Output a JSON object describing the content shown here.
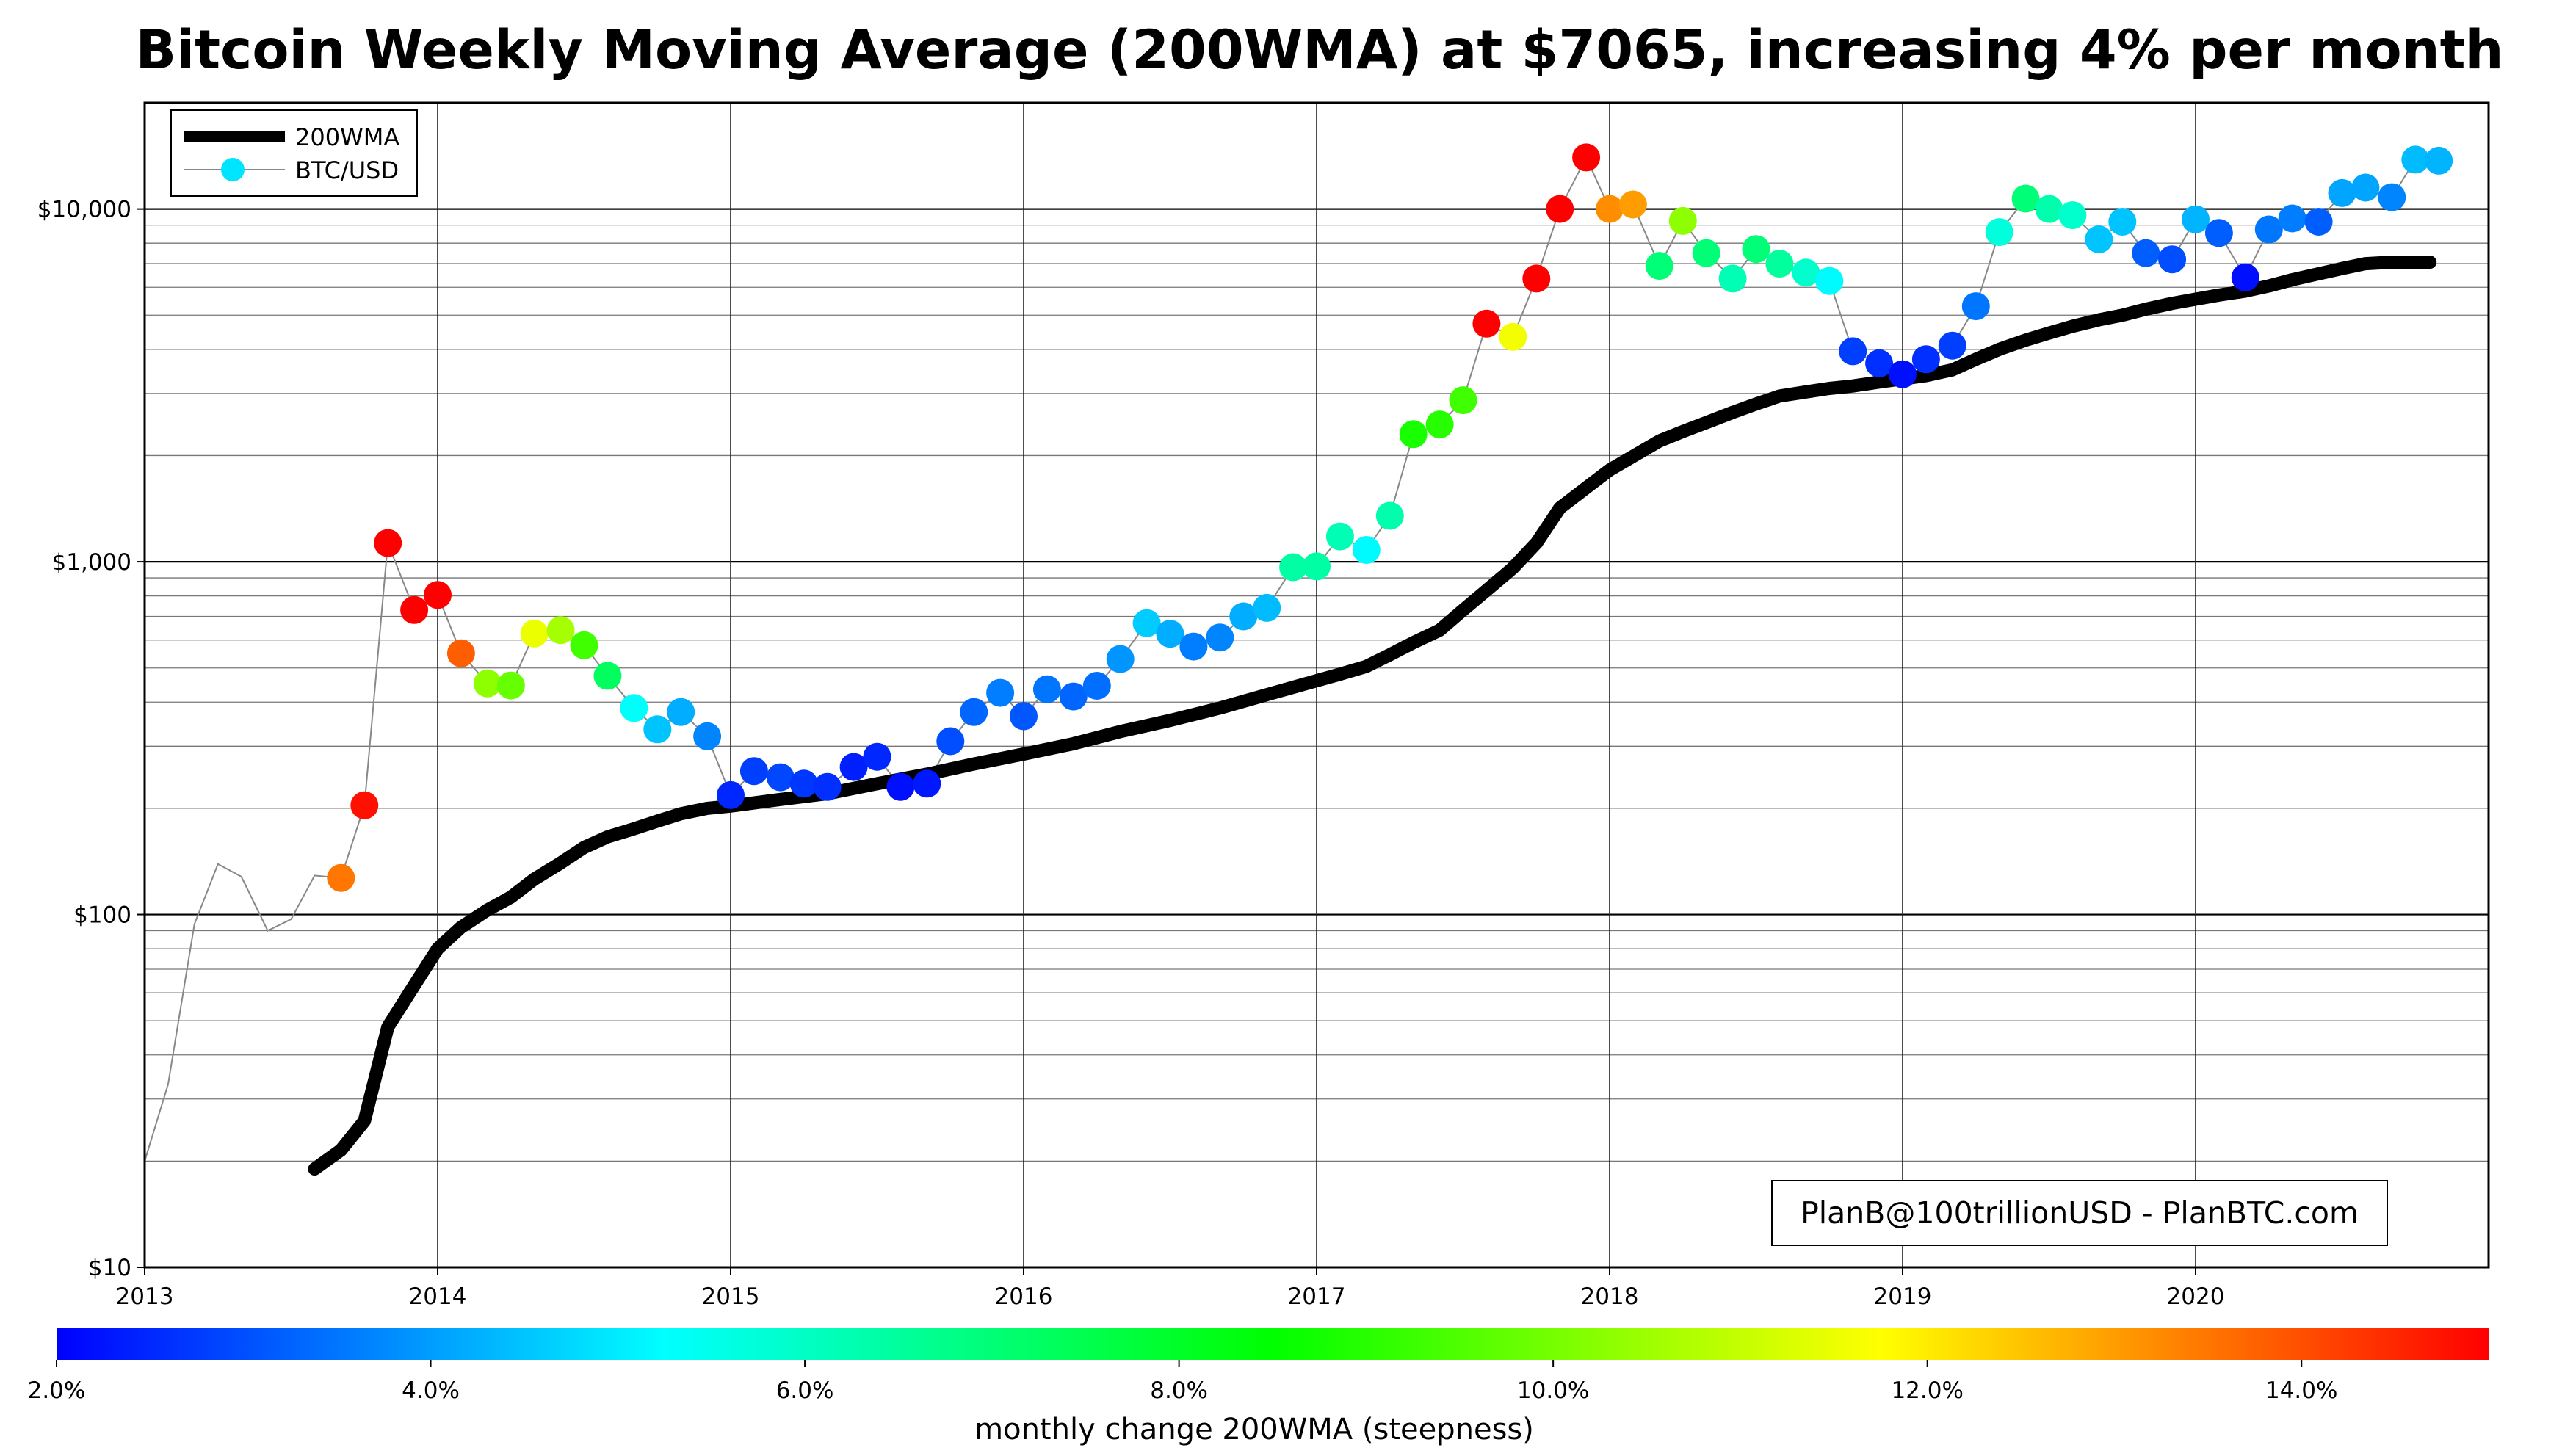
{
  "chart_data": {
    "type": "scatter",
    "title": "Bitcoin Weekly Moving Average (200WMA) at $7065, increasing 4% per month",
    "yscale": "log",
    "xlim": [
      2013.0,
      2021.0
    ],
    "ylim": [
      10,
      20000
    ],
    "grid": true,
    "legend_placement": "top-left",
    "watermark": "PlanB@100trillionUSD  -  PlanBTC.com",
    "x_ticks": [
      {
        "value": 2013,
        "label": "2013"
      },
      {
        "value": 2014,
        "label": "2014"
      },
      {
        "value": 2015,
        "label": "2015"
      },
      {
        "value": 2016,
        "label": "2016"
      },
      {
        "value": 2017,
        "label": "2017"
      },
      {
        "value": 2018,
        "label": "2018"
      },
      {
        "value": 2019,
        "label": "2019"
      },
      {
        "value": 2020,
        "label": "2020"
      }
    ],
    "y_ticks": [
      {
        "value": 10,
        "label": "$10"
      },
      {
        "value": 100,
        "label": "$100"
      },
      {
        "value": 1000,
        "label": "$1,000"
      },
      {
        "value": 10000,
        "label": "$10,000"
      }
    ],
    "legend": [
      {
        "label": "200WMA",
        "kind": "thick-line"
      },
      {
        "label": "BTC/USD",
        "kind": "thin-line-dot"
      }
    ],
    "colorbar": {
      "label": "monthly change 200WMA (steepness)",
      "min": 2.0,
      "max": 15.0,
      "ticks": [
        {
          "value": 2.0,
          "label": "2.0%"
        },
        {
          "value": 4.0,
          "label": "4.0%"
        },
        {
          "value": 6.0,
          "label": "6.0%"
        },
        {
          "value": 8.0,
          "label": "8.0%"
        },
        {
          "value": 10.0,
          "label": "10.0%"
        },
        {
          "value": 12.0,
          "label": "12.0%"
        },
        {
          "value": 14.0,
          "label": "14.0%"
        }
      ],
      "colors": [
        "#0000ff",
        "#00ffff",
        "#00ff00",
        "#ffff00",
        "#ff0000"
      ]
    },
    "series": [
      {
        "name": "200WMA",
        "style": "line",
        "color": "#000000",
        "x": [
          2013.58,
          2013.67,
          2013.75,
          2013.83,
          2013.92,
          2014.0,
          2014.08,
          2014.17,
          2014.25,
          2014.33,
          2014.42,
          2014.5,
          2014.58,
          2014.67,
          2014.75,
          2014.83,
          2014.92,
          2015.0,
          2015.17,
          2015.33,
          2015.5,
          2015.67,
          2015.83,
          2016.0,
          2016.17,
          2016.33,
          2016.5,
          2016.67,
          2016.83,
          2017.0,
          2017.08,
          2017.17,
          2017.25,
          2017.33,
          2017.42,
          2017.5,
          2017.58,
          2017.67,
          2017.75,
          2017.83,
          2017.92,
          2018.0,
          2018.08,
          2018.17,
          2018.25,
          2018.33,
          2018.42,
          2018.5,
          2018.58,
          2018.67,
          2018.75,
          2018.83,
          2018.92,
          2019.0,
          2019.08,
          2019.17,
          2019.25,
          2019.33,
          2019.42,
          2019.5,
          2019.58,
          2019.67,
          2019.75,
          2019.83,
          2019.92,
          2020.0,
          2020.08,
          2020.17,
          2020.25,
          2020.33,
          2020.42,
          2020.5,
          2020.58,
          2020.67,
          2020.75,
          2020.8
        ],
        "y": [
          19,
          21.5,
          26,
          48,
          63,
          80,
          92,
          103,
          112,
          126,
          140,
          155,
          166,
          175,
          184,
          193,
          200,
          203,
          212,
          220,
          235,
          250,
          267,
          285,
          305,
          330,
          355,
          385,
          420,
          460,
          480,
          505,
          545,
          590,
          640,
          730,
          830,
          960,
          1130,
          1420,
          1620,
          1820,
          1990,
          2200,
          2340,
          2480,
          2650,
          2800,
          2950,
          3030,
          3100,
          3150,
          3230,
          3300,
          3370,
          3500,
          3750,
          4000,
          4250,
          4450,
          4650,
          4850,
          5000,
          5200,
          5400,
          5550,
          5700,
          5850,
          6050,
          6300,
          6550,
          6780,
          7000,
          7065,
          7065,
          7065
        ]
      },
      {
        "name": "BTC/USD",
        "style": "line",
        "color": "#888888",
        "x": [
          2013.0,
          2013.08,
          2013.17,
          2013.25,
          2013.33,
          2013.42,
          2013.5,
          2013.58,
          2013.67,
          2013.75,
          2013.83,
          2013.92,
          2014.0,
          2014.08,
          2014.17,
          2014.25,
          2014.33,
          2014.42,
          2014.5,
          2014.58,
          2014.67,
          2014.75,
          2014.83,
          2014.92,
          2015.0,
          2015.08,
          2015.17,
          2015.25,
          2015.33,
          2015.42,
          2015.5,
          2015.58,
          2015.67,
          2015.75,
          2015.83,
          2015.92,
          2016.0,
          2016.08,
          2016.17,
          2016.25,
          2016.33,
          2016.42,
          2016.5,
          2016.58,
          2016.67,
          2016.75,
          2016.83,
          2016.92,
          2017.0,
          2017.08,
          2017.17,
          2017.25,
          2017.33,
          2017.42,
          2017.5,
          2017.58,
          2017.67,
          2017.75,
          2017.83,
          2017.92,
          2018.0,
          2018.08,
          2018.17,
          2018.25,
          2018.33,
          2018.42,
          2018.5,
          2018.58,
          2018.67,
          2018.75,
          2018.83,
          2018.92,
          2019.0,
          2019.08,
          2019.17,
          2019.25,
          2019.33,
          2019.42,
          2019.5,
          2019.58,
          2019.67,
          2019.75,
          2019.83,
          2019.92,
          2020.0,
          2020.08,
          2020.17,
          2020.25,
          2020.33,
          2020.42,
          2020.5,
          2020.58,
          2020.67,
          2020.75,
          2020.83
        ],
        "y": [
          20,
          33,
          94,
          139,
          128,
          90,
          97,
          129,
          127,
          204,
          1130,
          730,
          805,
          550,
          452,
          446,
          626,
          640,
          580,
          475,
          385,
          335,
          375,
          320,
          218,
          255,
          245,
          235,
          230,
          262,
          280,
          230,
          235,
          310,
          375,
          425,
          365,
          435,
          415,
          445,
          530,
          670,
          625,
          575,
          610,
          700,
          740,
          965,
          970,
          1180,
          1080,
          1350,
          2300,
          2450,
          2870,
          4730,
          4340,
          6350,
          10000,
          14000,
          10000,
          10300,
          6900,
          9250,
          7500,
          6350,
          7700,
          7000,
          6600,
          6250,
          3950,
          3650,
          3400,
          3750,
          4100,
          5300,
          8600,
          10700,
          10000,
          9600,
          8200,
          9200,
          7500,
          7200,
          9350,
          8550,
          6400,
          8750,
          9400,
          9200,
          11100,
          11500,
          10800,
          13800,
          13700
        ]
      },
      {
        "name": "BTC/USD",
        "style": "points",
        "color_by": "steepness",
        "x": [
          2013.67,
          2013.75,
          2013.83,
          2013.92,
          2014.0,
          2014.08,
          2014.17,
          2014.25,
          2014.33,
          2014.42,
          2014.5,
          2014.58,
          2014.67,
          2014.75,
          2014.83,
          2014.92,
          2015.0,
          2015.08,
          2015.17,
          2015.25,
          2015.33,
          2015.42,
          2015.5,
          2015.58,
          2015.67,
          2015.75,
          2015.83,
          2015.92,
          2016.0,
          2016.08,
          2016.17,
          2016.25,
          2016.33,
          2016.42,
          2016.5,
          2016.58,
          2016.67,
          2016.75,
          2016.83,
          2016.92,
          2017.0,
          2017.08,
          2017.17,
          2017.25,
          2017.33,
          2017.42,
          2017.5,
          2017.58,
          2017.67,
          2017.75,
          2017.83,
          2017.92,
          2018.0,
          2018.08,
          2018.17,
          2018.25,
          2018.33,
          2018.42,
          2018.5,
          2018.58,
          2018.67,
          2018.75,
          2018.83,
          2018.92,
          2019.0,
          2019.08,
          2019.17,
          2019.25,
          2019.33,
          2019.42,
          2019.5,
          2019.58,
          2019.67,
          2019.75,
          2019.83,
          2019.92,
          2020.0,
          2020.08,
          2020.17,
          2020.25,
          2020.33,
          2020.42,
          2020.5,
          2020.58,
          2020.67,
          2020.75,
          2020.83
        ],
        "y": [
          127,
          204,
          1130,
          730,
          805,
          550,
          452,
          446,
          626,
          640,
          580,
          475,
          385,
          335,
          375,
          320,
          218,
          255,
          245,
          235,
          230,
          262,
          280,
          230,
          235,
          310,
          375,
          425,
          365,
          435,
          415,
          445,
          530,
          670,
          625,
          575,
          610,
          700,
          740,
          965,
          970,
          1180,
          1080,
          1350,
          2300,
          2450,
          2870,
          4730,
          4340,
          6350,
          10000,
          14000,
          10000,
          10300,
          6900,
          9250,
          7500,
          6350,
          7700,
          7000,
          6600,
          6250,
          3950,
          3650,
          3400,
          3750,
          4100,
          5300,
          8600,
          10700,
          10000,
          9600,
          8200,
          9200,
          7500,
          7200,
          9350,
          8550,
          6400,
          8750,
          9400,
          9200,
          11100,
          11500,
          10800,
          13800,
          13700
        ],
        "steepness": [
          13.5,
          14.8,
          15.0,
          15.0,
          15.0,
          13.8,
          10.3,
          9.8,
          11.5,
          10.6,
          9.3,
          7.3,
          5.3,
          4.5,
          4.2,
          3.7,
          2.5,
          2.8,
          2.9,
          2.7,
          2.6,
          2.4,
          2.5,
          2.2,
          2.3,
          3.0,
          3.3,
          3.6,
          3.1,
          3.5,
          3.3,
          3.4,
          3.9,
          4.6,
          4.2,
          3.6,
          3.7,
          4.2,
          4.4,
          6.4,
          6.4,
          6.2,
          5.2,
          6.3,
          8.8,
          9.0,
          9.3,
          15.0,
          11.6,
          15.0,
          15.0,
          15.0,
          13.2,
          13.0,
          7.0,
          10.3,
          7.0,
          6.2,
          7.0,
          6.5,
          5.9,
          5.2,
          2.8,
          2.6,
          2.2,
          2.6,
          2.8,
          3.5,
          5.7,
          7.0,
          6.3,
          5.9,
          4.5,
          4.5,
          3.2,
          3.0,
          4.3,
          3.2,
          2.2,
          3.5,
          3.6,
          3.2,
          4.1,
          4.1,
          3.7,
          4.4,
          4.3
        ]
      }
    ]
  }
}
